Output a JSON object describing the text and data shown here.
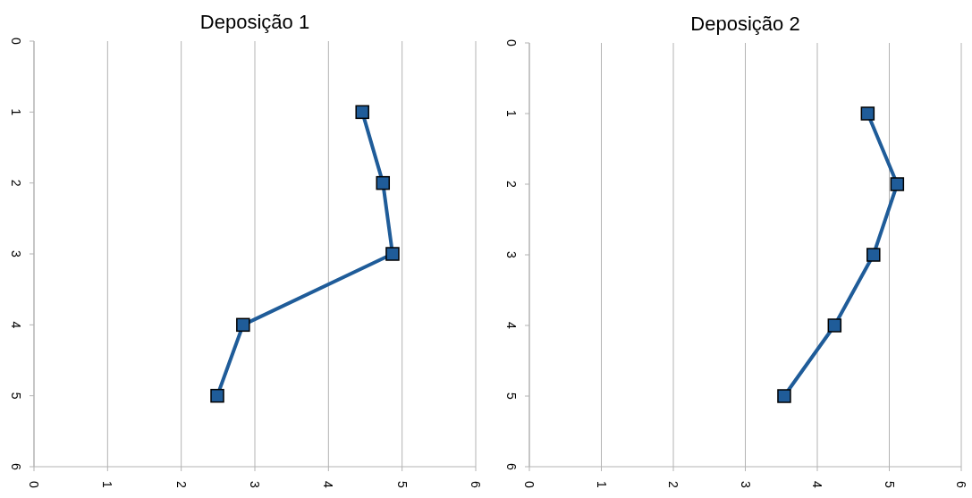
{
  "chart_data": [
    {
      "type": "line",
      "title": "Deposição 1",
      "xlim": [
        0,
        6
      ],
      "xticks": [
        0,
        1,
        2,
        3,
        4,
        5,
        6
      ],
      "ylim": [
        6,
        0
      ],
      "yticks": [
        0,
        1,
        2,
        3,
        4,
        5,
        6
      ],
      "grid": "x",
      "marker": "square",
      "line_style": "solid",
      "series": [
        {
          "color": "#1f5c99",
          "x": [
            4.46,
            4.74,
            4.87,
            2.84,
            2.49
          ],
          "values": [
            1,
            2,
            3,
            4,
            5
          ]
        }
      ]
    },
    {
      "type": "line",
      "title": "Deposição 2",
      "xlim": [
        0,
        6
      ],
      "xticks": [
        0,
        1,
        2,
        3,
        4,
        5,
        6
      ],
      "ylim": [
        6,
        0
      ],
      "yticks": [
        0,
        1,
        2,
        3,
        4,
        5,
        6
      ],
      "grid": "x",
      "marker": "square",
      "line_style": "solid",
      "series": [
        {
          "color": "#1f5c99",
          "x": [
            4.7,
            5.11,
            4.78,
            4.24,
            3.54
          ],
          "values": [
            1,
            2,
            3,
            4,
            5
          ]
        }
      ]
    }
  ]
}
